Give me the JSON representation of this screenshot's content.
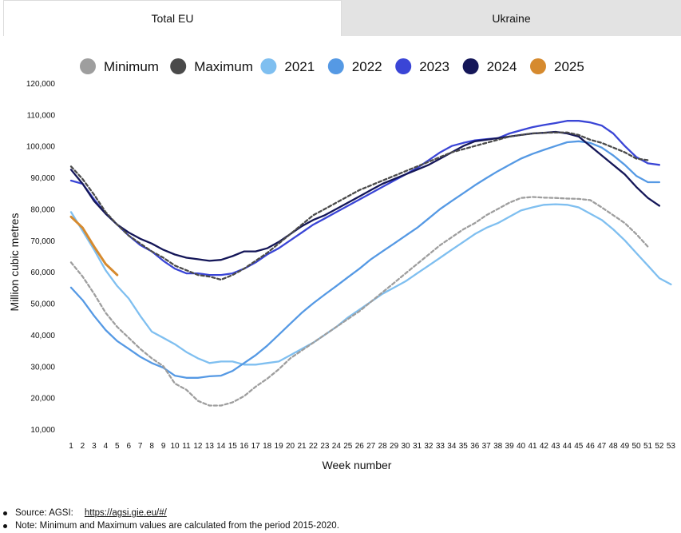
{
  "tabs": [
    {
      "label": "Total EU",
      "active": true
    },
    {
      "label": "Ukraine",
      "active": false
    }
  ],
  "notes": {
    "source_label": "Source: AGSI:",
    "source_link": "https://agsi.gie.eu/#/",
    "note": "Note: Minimum and Maximum values are calculated from the period 2015-2020."
  },
  "chart_data": {
    "type": "line",
    "title": "",
    "xlabel": "Week number",
    "ylabel": "Million cubic metres",
    "x": [
      1,
      2,
      3,
      4,
      5,
      6,
      7,
      8,
      9,
      10,
      11,
      12,
      13,
      14,
      15,
      16,
      17,
      18,
      19,
      20,
      21,
      22,
      23,
      24,
      25,
      26,
      27,
      28,
      29,
      30,
      31,
      32,
      33,
      34,
      35,
      36,
      37,
      38,
      39,
      40,
      41,
      42,
      43,
      44,
      45,
      46,
      47,
      48,
      49,
      50,
      51,
      52,
      53
    ],
    "ylim": [
      10000,
      120000
    ],
    "yticks": [
      10000,
      20000,
      30000,
      40000,
      50000,
      60000,
      70000,
      80000,
      90000,
      100000,
      110000,
      120000
    ],
    "ytick_labels": [
      "10,000",
      "20,000",
      "30,000",
      "40,000",
      "50,000",
      "60,000",
      "70,000",
      "80,000",
      "90,000",
      "100,000",
      "110,000",
      "120,000"
    ],
    "grid": false,
    "legend_position": "top",
    "series": [
      {
        "name": "Minimum",
        "color": "#9e9e9e",
        "style": "dashed",
        "values": [
          63000,
          58500,
          53000,
          47000,
          42500,
          39000,
          35500,
          32500,
          30000,
          24500,
          22500,
          19000,
          17500,
          17500,
          18500,
          20500,
          23500,
          26000,
          29000,
          32500,
          35000,
          37500,
          40000,
          42500,
          45000,
          47500,
          50500,
          53500,
          56500,
          59500,
          62500,
          65500,
          68500,
          71000,
          73500,
          75500,
          78000,
          80000,
          82000,
          83500,
          83800,
          83600,
          83500,
          83300,
          83200,
          82800,
          80500,
          78000,
          75500,
          72000,
          68000,
          null,
          null
        ]
      },
      {
        "name": "Maximum",
        "color": "#4a4a4a",
        "style": "dashed",
        "values": [
          93500,
          89500,
          84500,
          79000,
          75000,
          71500,
          69000,
          66500,
          64500,
          62000,
          60500,
          59000,
          58500,
          57500,
          59000,
          61000,
          63500,
          66000,
          69000,
          72000,
          75000,
          78000,
          80000,
          82000,
          84000,
          86000,
          87500,
          89000,
          90500,
          92000,
          93500,
          95000,
          96500,
          98000,
          99000,
          100000,
          101000,
          102000,
          103000,
          103500,
          104000,
          104200,
          104300,
          104300,
          103500,
          102000,
          101000,
          99500,
          98000,
          96000,
          95500,
          null,
          null
        ]
      },
      {
        "name": "2021",
        "color": "#7fbff0",
        "style": "solid",
        "values": [
          79000,
          73000,
          67000,
          60500,
          55500,
          51500,
          46000,
          41000,
          39000,
          37000,
          34500,
          32500,
          31000,
          31500,
          31500,
          30500,
          30500,
          31000,
          31500,
          33500,
          35500,
          37500,
          40000,
          42500,
          45500,
          48000,
          50500,
          53000,
          55000,
          57000,
          59500,
          62000,
          64500,
          67000,
          69500,
          72000,
          74000,
          75500,
          77500,
          79500,
          80500,
          81300,
          81500,
          81300,
          80500,
          78500,
          76500,
          73500,
          70000,
          66000,
          62000,
          58000,
          56000
        ]
      },
      {
        "name": "2022",
        "color": "#5599e4",
        "style": "solid",
        "values": [
          55000,
          51000,
          46000,
          41500,
          38000,
          35500,
          33000,
          31000,
          29500,
          27000,
          26300,
          26300,
          26800,
          27000,
          28500,
          31000,
          33500,
          36500,
          40000,
          43500,
          47000,
          50000,
          52800,
          55500,
          58300,
          61000,
          64000,
          66500,
          69000,
          71500,
          74000,
          77000,
          80000,
          82500,
          85000,
          87500,
          89800,
          92000,
          94000,
          96000,
          97500,
          98800,
          100000,
          101200,
          101500,
          101000,
          99500,
          97000,
          94000,
          90500,
          88500,
          88500,
          null
        ]
      },
      {
        "name": "2023",
        "color": "#3a45d6",
        "style": "solid",
        "values": [
          89000,
          88000,
          83000,
          78500,
          75000,
          71500,
          68500,
          66500,
          63500,
          61000,
          59500,
          59500,
          59000,
          59000,
          59500,
          61000,
          63000,
          65500,
          67500,
          70000,
          72500,
          75000,
          77000,
          79000,
          81000,
          83000,
          85000,
          87000,
          89000,
          91000,
          93000,
          95500,
          98000,
          100000,
          101000,
          101800,
          102200,
          102500,
          104000,
          105000,
          106000,
          106700,
          107300,
          108000,
          108000,
          107500,
          106500,
          104000,
          100000,
          96500,
          94500,
          94000,
          null
        ]
      },
      {
        "name": "2024",
        "color": "#141658",
        "style": "solid",
        "values": [
          92500,
          88000,
          82500,
          78500,
          75000,
          72500,
          70500,
          69000,
          67000,
          65500,
          64500,
          64000,
          63500,
          63800,
          65000,
          66500,
          66500,
          67500,
          69500,
          72000,
          74500,
          76500,
          78000,
          80000,
          82000,
          84000,
          86000,
          88000,
          89500,
          91000,
          92500,
          94000,
          96000,
          98000,
          100000,
          101500,
          102000,
          102500,
          103000,
          103500,
          104000,
          104200,
          104500,
          104000,
          103000,
          100000,
          97000,
          94000,
          91000,
          87000,
          83500,
          81000,
          null
        ]
      },
      {
        "name": "2025",
        "color": "#d68a2e",
        "style": "solid",
        "values": [
          77500,
          74000,
          68000,
          62500,
          59000,
          null,
          null,
          null,
          null,
          null,
          null,
          null,
          null,
          null,
          null,
          null,
          null,
          null,
          null,
          null,
          null,
          null,
          null,
          null,
          null,
          null,
          null,
          null,
          null,
          null,
          null,
          null,
          null,
          null,
          null,
          null,
          null,
          null,
          null,
          null,
          null,
          null,
          null,
          null,
          null,
          null,
          null,
          null,
          null,
          null,
          null,
          null,
          null
        ]
      }
    ]
  }
}
